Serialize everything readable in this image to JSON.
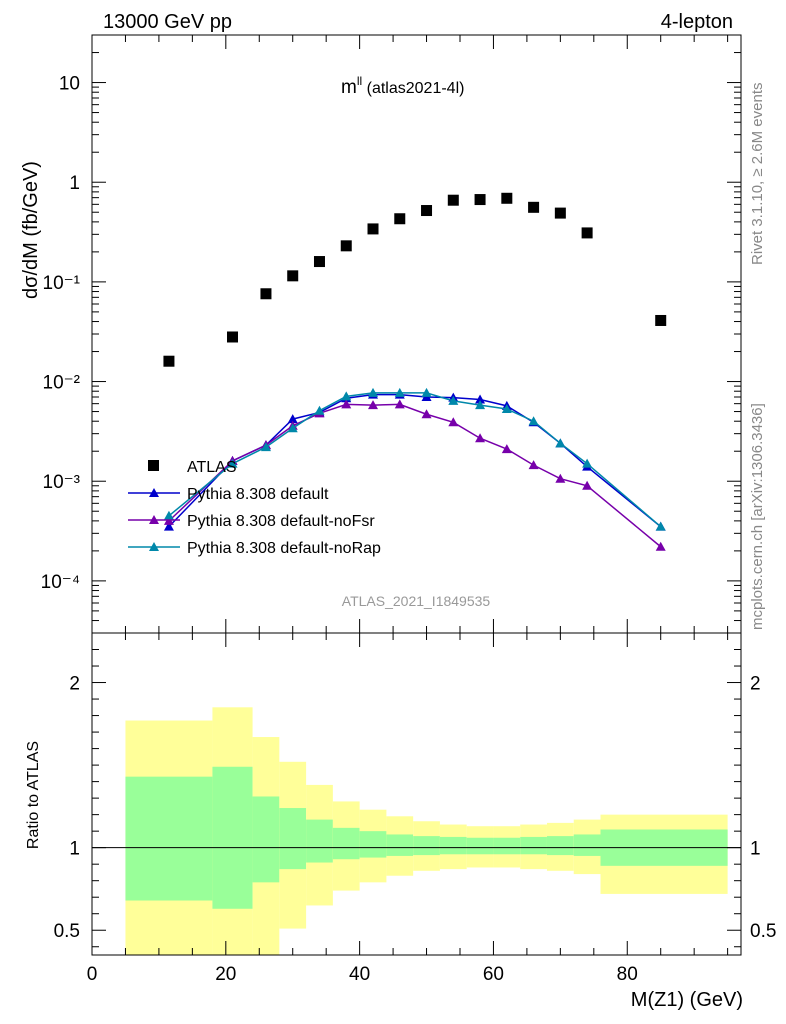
{
  "header": {
    "left": "13000 GeV pp",
    "right": "4-lepton"
  },
  "plot_title": {
    "main": "m",
    "sup": "ll",
    "rest": " (atlas2021-4l)"
  },
  "side_labels": {
    "rivet": "Rivet 3.1.10, ≥ 2.6M events",
    "mcplots": "mcplots.cern.ch [arXiv:1306.3436]"
  },
  "watermark": "ATLAS_2021_I1849535",
  "colors": {
    "data": "#000000",
    "default": "#0000cc",
    "noFsr": "#7700aa",
    "noRap": "#0088aa",
    "band_inner": "#99ff99",
    "band_outer": "#ffff99",
    "watermark": "#999999"
  },
  "chart_data": [
    {
      "type": "scatter",
      "ylabel": "dσ/dM (fb/GeV)",
      "y_scale": "log",
      "ylim": [
        3e-05,
        30
      ],
      "xlim": [
        0,
        97
      ],
      "y_ticks": [
        {
          "label": "10",
          "value": 10
        },
        {
          "label": "1",
          "value": 1
        },
        {
          "label": "10⁻¹",
          "value": 0.1
        },
        {
          "label": "10⁻²",
          "value": 0.01
        },
        {
          "label": "10⁻³",
          "value": 0.001
        },
        {
          "label": "10⁻⁴",
          "value": 0.0001
        }
      ],
      "legend": [
        "ATLAS",
        "Pythia 8.308 default",
        "Pythia 8.308 default-noFsr",
        "Pythia 8.308 default-noRap"
      ],
      "legend_position": "left",
      "series": [
        {
          "name": "ATLAS",
          "marker": "square",
          "x": [
            11.5,
            21,
            26,
            30,
            34,
            38,
            42,
            46,
            50,
            54,
            58,
            62,
            66,
            70,
            74,
            85
          ],
          "y": [
            0.016,
            0.028,
            0.076,
            0.115,
            0.16,
            0.23,
            0.34,
            0.43,
            0.52,
            0.66,
            0.67,
            0.69,
            0.56,
            0.49,
            0.31,
            0.041
          ]
        },
        {
          "name": "Pythia 8.308 default",
          "marker": "triangle",
          "x": [
            11.5,
            21,
            26,
            30,
            34,
            38,
            42,
            46,
            50,
            54,
            58,
            62,
            66,
            70,
            74,
            85
          ],
          "y": [
            0.00035,
            0.0016,
            0.0023,
            0.0042,
            0.0049,
            0.0068,
            0.0074,
            0.0074,
            0.007,
            0.0069,
            0.0066,
            0.0057,
            0.0039,
            0.0024,
            0.0014,
            0.00035
          ]
        },
        {
          "name": "Pythia 8.308 default-noFsr",
          "marker": "triangle",
          "x": [
            11.5,
            21,
            26,
            30,
            34,
            38,
            42,
            46,
            50,
            54,
            58,
            62,
            66,
            70,
            74,
            85
          ],
          "y": [
            0.0004,
            0.0016,
            0.0023,
            0.0036,
            0.0048,
            0.0059,
            0.0058,
            0.0059,
            0.0047,
            0.0039,
            0.0027,
            0.0021,
            0.00145,
            0.00106,
            0.0009,
            0.00022
          ]
        },
        {
          "name": "Pythia 8.308 default-noRap",
          "marker": "triangle",
          "x": [
            11.5,
            21,
            26,
            30,
            34,
            38,
            42,
            46,
            50,
            54,
            58,
            62,
            66,
            70,
            74,
            85
          ],
          "y": [
            0.00045,
            0.0015,
            0.0022,
            0.0034,
            0.0051,
            0.0071,
            0.0077,
            0.0077,
            0.0077,
            0.0064,
            0.0058,
            0.0053,
            0.004,
            0.0024,
            0.0015,
            0.00035
          ]
        }
      ]
    },
    {
      "type": "area",
      "ylabel": "Ratio to ATLAS",
      "xlabel": "M(Z1) (GeV)",
      "xlim": [
        0,
        97
      ],
      "ylim": [
        0.35,
        2.3
      ],
      "x_ticks": [
        0,
        20,
        40,
        60,
        80
      ],
      "y_ticks": [
        {
          "label": "2",
          "value": 2
        },
        {
          "label": "1",
          "value": 1
        },
        {
          "label": "0.5",
          "value": 0.5
        }
      ],
      "bins": [
        {
          "lo": 5,
          "hi": 18,
          "inner": [
            0.68,
            1.43
          ],
          "outer": [
            0.3,
            1.77
          ]
        },
        {
          "lo": 18,
          "hi": 24,
          "inner": [
            0.63,
            1.49
          ],
          "outer": [
            0.3,
            1.85
          ]
        },
        {
          "lo": 24,
          "hi": 28,
          "inner": [
            0.79,
            1.31
          ],
          "outer": [
            0.3,
            1.67
          ]
        },
        {
          "lo": 28,
          "hi": 32,
          "inner": [
            0.87,
            1.24
          ],
          "outer": [
            0.51,
            1.52
          ]
        },
        {
          "lo": 32,
          "hi": 36,
          "inner": [
            0.91,
            1.17
          ],
          "outer": [
            0.65,
            1.38
          ]
        },
        {
          "lo": 36,
          "hi": 40,
          "inner": [
            0.93,
            1.12
          ],
          "outer": [
            0.74,
            1.28
          ]
        },
        {
          "lo": 40,
          "hi": 44,
          "inner": [
            0.94,
            1.1
          ],
          "outer": [
            0.79,
            1.23
          ]
        },
        {
          "lo": 44,
          "hi": 48,
          "inner": [
            0.95,
            1.08
          ],
          "outer": [
            0.83,
            1.19
          ]
        },
        {
          "lo": 48,
          "hi": 52,
          "inner": [
            0.955,
            1.07
          ],
          "outer": [
            0.86,
            1.16
          ]
        },
        {
          "lo": 52,
          "hi": 56,
          "inner": [
            0.96,
            1.065
          ],
          "outer": [
            0.87,
            1.14
          ]
        },
        {
          "lo": 56,
          "hi": 60,
          "inner": [
            0.96,
            1.06
          ],
          "outer": [
            0.88,
            1.13
          ]
        },
        {
          "lo": 60,
          "hi": 64,
          "inner": [
            0.96,
            1.06
          ],
          "outer": [
            0.88,
            1.13
          ]
        },
        {
          "lo": 64,
          "hi": 68,
          "inner": [
            0.96,
            1.065
          ],
          "outer": [
            0.87,
            1.14
          ]
        },
        {
          "lo": 68,
          "hi": 72,
          "inner": [
            0.955,
            1.07
          ],
          "outer": [
            0.86,
            1.15
          ]
        },
        {
          "lo": 72,
          "hi": 76,
          "inner": [
            0.95,
            1.08
          ],
          "outer": [
            0.84,
            1.17
          ]
        },
        {
          "lo": 76,
          "hi": 95,
          "inner": [
            0.89,
            1.11
          ],
          "outer": [
            0.72,
            1.2
          ]
        }
      ]
    }
  ]
}
